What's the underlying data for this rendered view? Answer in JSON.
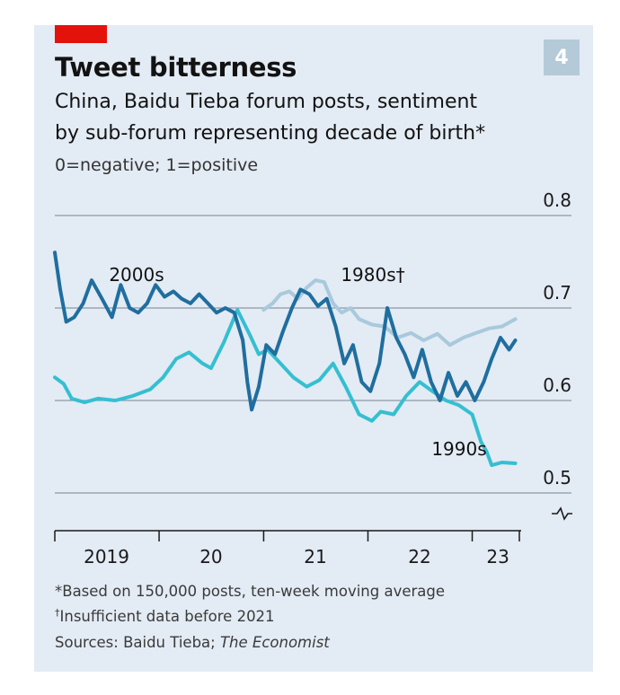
{
  "badge": "4",
  "title": "Tweet bitterness",
  "subtitle_line1": "China, Baidu Tieba forum posts, sentiment",
  "subtitle_line2": "by sub-forum representing decade of birth*",
  "scale_note": "0=negative; 1=positive",
  "footnotes": {
    "note1": "*Based on 150,000 posts, ten-week moving average",
    "note2_mark": "†",
    "note2_text": "Insufficient data before 2021",
    "sources_prefix": "Sources: Baidu Tieba; ",
    "sources_italic": "The Economist"
  },
  "colors": {
    "accent": "#e3120b",
    "s2000s": "#1f6e9f",
    "s1980s": "#a9c9dc",
    "s1990s": "#35bfd1",
    "panel": "#e3ebf4"
  },
  "chart_data": {
    "type": "line",
    "title": "Tweet bitterness",
    "xlabel": "",
    "ylabel": "0=negative; 1=positive",
    "ylim": [
      0.5,
      0.8
    ],
    "yticks": [
      0.5,
      0.6,
      0.7,
      0.8
    ],
    "ytick_labels": [
      "0.5",
      "0.6",
      "0.7",
      "0.8"
    ],
    "y_axis_break": true,
    "y_axis_side": "right",
    "xlim": [
      "2019-01-01",
      "2023-06-15"
    ],
    "x_year_labels": [
      {
        "label": "2019",
        "x": "2019-07-01"
      },
      {
        "label": "20",
        "x": "2020-07-01"
      },
      {
        "label": "21",
        "x": "2021-07-01"
      },
      {
        "label": "22",
        "x": "2022-07-01"
      },
      {
        "label": "23",
        "x": "2023-04-01"
      }
    ],
    "x_ticks": [
      "2019-01-01",
      "2020-01-01",
      "2021-01-01",
      "2022-01-01",
      "2023-01-01",
      "2023-06-15"
    ],
    "grid": true,
    "legend": "inline labels",
    "series": [
      {
        "name": "1990s",
        "label": "1990s",
        "color": "#35bfd1",
        "points": [
          [
            "2019-01-01",
            0.625
          ],
          [
            "2019-02-01",
            0.618
          ],
          [
            "2019-03-01",
            0.602
          ],
          [
            "2019-04-15",
            0.598
          ],
          [
            "2019-06-01",
            0.602
          ],
          [
            "2019-08-01",
            0.6
          ],
          [
            "2019-10-01",
            0.605
          ],
          [
            "2019-12-01",
            0.612
          ],
          [
            "2020-01-15",
            0.625
          ],
          [
            "2020-03-01",
            0.645
          ],
          [
            "2020-04-15",
            0.652
          ],
          [
            "2020-06-01",
            0.64
          ],
          [
            "2020-07-01",
            0.635
          ],
          [
            "2020-08-15",
            0.663
          ],
          [
            "2020-10-01",
            0.698
          ],
          [
            "2020-11-15",
            0.67
          ],
          [
            "2020-12-15",
            0.65
          ],
          [
            "2021-01-15",
            0.655
          ],
          [
            "2021-03-01",
            0.64
          ],
          [
            "2021-04-15",
            0.625
          ],
          [
            "2021-06-01",
            0.615
          ],
          [
            "2021-07-15",
            0.622
          ],
          [
            "2021-09-01",
            0.64
          ],
          [
            "2021-10-15",
            0.615
          ],
          [
            "2021-12-01",
            0.585
          ],
          [
            "2022-01-15",
            0.578
          ],
          [
            "2022-02-15",
            0.588
          ],
          [
            "2022-04-01",
            0.585
          ],
          [
            "2022-05-15",
            0.605
          ],
          [
            "2022-07-01",
            0.62
          ],
          [
            "2022-08-15",
            0.61
          ],
          [
            "2022-10-01",
            0.6
          ],
          [
            "2022-11-15",
            0.595
          ],
          [
            "2023-01-01",
            0.585
          ],
          [
            "2023-02-01",
            0.555
          ],
          [
            "2023-02-20",
            0.545
          ],
          [
            "2023-03-10",
            0.53
          ],
          [
            "2023-04-15",
            0.533
          ],
          [
            "2023-06-01",
            0.532
          ]
        ]
      },
      {
        "name": "1980s",
        "label": "1980s†",
        "color": "#a9c9dc",
        "points": [
          [
            "2021-01-01",
            0.698
          ],
          [
            "2021-02-01",
            0.705
          ],
          [
            "2021-03-01",
            0.715
          ],
          [
            "2021-04-01",
            0.718
          ],
          [
            "2021-05-01",
            0.71
          ],
          [
            "2021-06-01",
            0.722
          ],
          [
            "2021-07-01",
            0.73
          ],
          [
            "2021-08-01",
            0.728
          ],
          [
            "2021-09-01",
            0.705
          ],
          [
            "2021-10-01",
            0.695
          ],
          [
            "2021-11-01",
            0.7
          ],
          [
            "2021-12-01",
            0.688
          ],
          [
            "2022-01-15",
            0.682
          ],
          [
            "2022-03-01",
            0.68
          ],
          [
            "2022-04-15",
            0.668
          ],
          [
            "2022-06-01",
            0.673
          ],
          [
            "2022-07-15",
            0.665
          ],
          [
            "2022-09-01",
            0.672
          ],
          [
            "2022-10-15",
            0.66
          ],
          [
            "2022-12-01",
            0.668
          ],
          [
            "2023-01-15",
            0.673
          ],
          [
            "2023-03-01",
            0.678
          ],
          [
            "2023-04-15",
            0.68
          ],
          [
            "2023-06-01",
            0.688
          ]
        ]
      },
      {
        "name": "2000s",
        "label": "2000s",
        "color": "#1f6e9f",
        "points": [
          [
            "2019-01-01",
            0.76
          ],
          [
            "2019-01-20",
            0.72
          ],
          [
            "2019-02-10",
            0.685
          ],
          [
            "2019-03-10",
            0.69
          ],
          [
            "2019-04-10",
            0.705
          ],
          [
            "2019-05-10",
            0.73
          ],
          [
            "2019-06-15",
            0.71
          ],
          [
            "2019-07-20",
            0.69
          ],
          [
            "2019-08-20",
            0.725
          ],
          [
            "2019-09-20",
            0.7
          ],
          [
            "2019-10-20",
            0.695
          ],
          [
            "2019-11-20",
            0.705
          ],
          [
            "2019-12-20",
            0.725
          ],
          [
            "2020-01-20",
            0.712
          ],
          [
            "2020-02-20",
            0.718
          ],
          [
            "2020-03-20",
            0.71
          ],
          [
            "2020-04-20",
            0.705
          ],
          [
            "2020-05-20",
            0.715
          ],
          [
            "2020-06-20",
            0.705
          ],
          [
            "2020-07-20",
            0.695
          ],
          [
            "2020-08-20",
            0.7
          ],
          [
            "2020-09-20",
            0.695
          ],
          [
            "2020-10-20",
            0.665
          ],
          [
            "2020-11-05",
            0.62
          ],
          [
            "2020-11-20",
            0.59
          ],
          [
            "2020-12-15",
            0.615
          ],
          [
            "2021-01-10",
            0.66
          ],
          [
            "2021-02-10",
            0.65
          ],
          [
            "2021-03-10",
            0.675
          ],
          [
            "2021-04-10",
            0.7
          ],
          [
            "2021-05-10",
            0.72
          ],
          [
            "2021-06-10",
            0.715
          ],
          [
            "2021-07-10",
            0.702
          ],
          [
            "2021-08-10",
            0.71
          ],
          [
            "2021-09-10",
            0.68
          ],
          [
            "2021-10-10",
            0.64
          ],
          [
            "2021-11-10",
            0.66
          ],
          [
            "2021-12-10",
            0.62
          ],
          [
            "2022-01-10",
            0.61
          ],
          [
            "2022-02-10",
            0.64
          ],
          [
            "2022-03-10",
            0.7
          ],
          [
            "2022-04-10",
            0.668
          ],
          [
            "2022-05-10",
            0.65
          ],
          [
            "2022-06-10",
            0.625
          ],
          [
            "2022-07-10",
            0.655
          ],
          [
            "2022-08-10",
            0.62
          ],
          [
            "2022-09-10",
            0.6
          ],
          [
            "2022-10-10",
            0.63
          ],
          [
            "2022-11-10",
            0.605
          ],
          [
            "2022-12-10",
            0.62
          ],
          [
            "2023-01-10",
            0.6
          ],
          [
            "2023-02-10",
            0.62
          ],
          [
            "2023-03-10",
            0.645
          ],
          [
            "2023-04-10",
            0.668
          ],
          [
            "2023-05-10",
            0.655
          ],
          [
            "2023-06-01",
            0.665
          ]
        ]
      }
    ]
  }
}
